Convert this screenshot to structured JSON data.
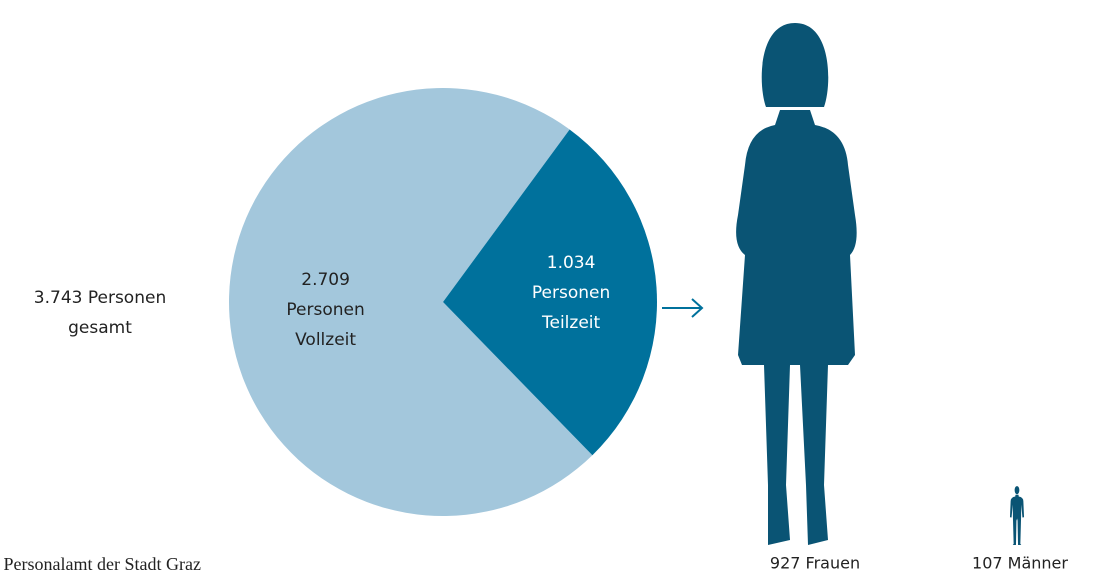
{
  "chart_data": {
    "type": "pie",
    "categories": [
      [
        "Personen",
        "Vollzeit"
      ],
      [
        "Personen",
        "Teilzeit"
      ]
    ],
    "values": [
      2709,
      1034
    ],
    "value_labels": [
      "2.709",
      "1.034"
    ],
    "colors": [
      "#a3c7dc",
      "#00719c"
    ],
    "total_label": [
      "3.743 Personen",
      "gesamt"
    ],
    "breakdown": {
      "labels": [
        "927 Frauen",
        "107 Männer"
      ],
      "values": [
        927,
        107
      ],
      "color": "#0a5474"
    },
    "source": ": Personalamt der Stadt Graz"
  }
}
